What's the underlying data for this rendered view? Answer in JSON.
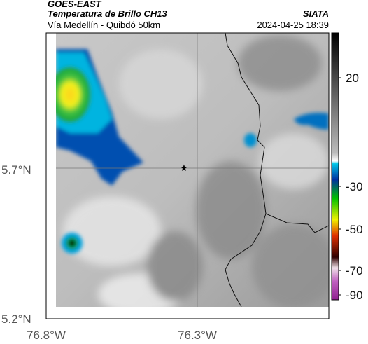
{
  "header": {
    "source": "GOES-EAST",
    "product": "Temperatura de Brillo CH13",
    "route": "Vía Medellín - Quibdó 50km",
    "agency": "SIATA",
    "timestamp": "2024-04-25 18:39"
  },
  "axes": {
    "latitude_labels": [
      "5.7°N",
      "5.2°N"
    ],
    "longitude_labels": [
      "76.8°W",
      "76.3°W"
    ]
  },
  "colorbar": {
    "ticks": [
      20,
      -30,
      -50,
      -70,
      -90
    ]
  }
}
